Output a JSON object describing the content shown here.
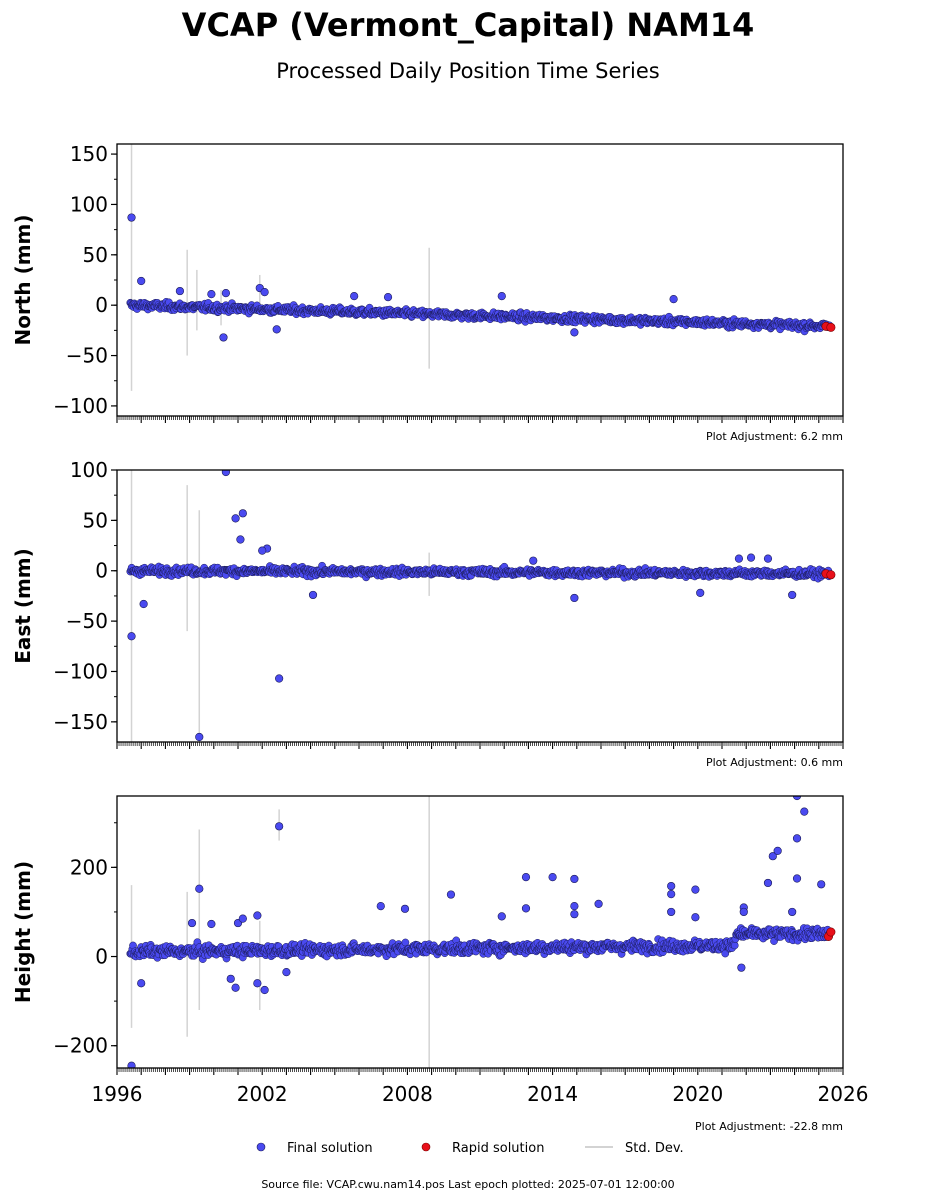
{
  "title": "VCAP (Vermont_Capital) NAM14",
  "subtitle": "Processed Daily Position Time Series",
  "footer": "Source file: VCAP.cwu.nam14.pos  Last epoch plotted: 2025-07-01 12:00:00",
  "legend": {
    "final": "Final solution",
    "rapid": "Rapid solution",
    "stddev": "Std. Dev."
  },
  "colors": {
    "final": "#4a4af0",
    "final_edge": "#1a1a55",
    "rapid": "#e8101a",
    "stddev": "#d3d3d3"
  },
  "chart_data": [
    {
      "type": "scatter",
      "ylabel": "North (mm)",
      "adjustment": "Plot Adjustment: 6.2 mm",
      "xlim": [
        1996,
        2026
      ],
      "ylim": [
        -110,
        160
      ],
      "yticks": [
        -100,
        -50,
        0,
        50,
        100,
        150
      ],
      "trend": [
        [
          1996.5,
          0
        ],
        [
          2025.5,
          -21
        ]
      ],
      "rapid": [
        [
          2025.3,
          -21
        ],
        [
          2025.5,
          -22
        ]
      ],
      "outliers": [
        [
          1996.6,
          87
        ],
        [
          1997.0,
          24
        ],
        [
          2000.4,
          -32
        ],
        [
          2001.9,
          17
        ],
        [
          2002.1,
          13
        ],
        [
          2002.6,
          -24
        ],
        [
          2007.2,
          8
        ],
        [
          2011.9,
          9
        ],
        [
          2019.0,
          6
        ],
        [
          2014.9,
          -27
        ],
        [
          1998.6,
          14
        ],
        [
          1999.9,
          11
        ],
        [
          2000.5,
          12
        ],
        [
          2005.8,
          9
        ]
      ],
      "errorbars": [
        [
          1996.6,
          -85,
          160
        ],
        [
          1998.9,
          -50,
          55
        ],
        [
          1999.3,
          -25,
          35
        ],
        [
          2000.3,
          -20,
          15
        ],
        [
          2001.9,
          -10,
          30
        ],
        [
          2008.9,
          -63,
          57
        ]
      ]
    },
    {
      "type": "scatter",
      "ylabel": "East (mm)",
      "adjustment": "Plot Adjustment: 0.6 mm",
      "xlim": [
        1996,
        2026
      ],
      "ylim": [
        -170,
        100
      ],
      "yticks": [
        -150,
        -100,
        -50,
        0,
        50,
        100
      ],
      "trend": [
        [
          1996.5,
          0
        ],
        [
          2025.5,
          -3
        ]
      ],
      "rapid": [
        [
          2025.3,
          -3
        ],
        [
          2025.5,
          -4
        ]
      ],
      "outliers": [
        [
          1996.6,
          -65
        ],
        [
          1997.1,
          -33
        ],
        [
          1999.4,
          -165
        ],
        [
          2000.5,
          98
        ],
        [
          2000.9,
          52
        ],
        [
          2001.1,
          31
        ],
        [
          2001.2,
          57
        ],
        [
          2002.2,
          22
        ],
        [
          2002.0,
          20
        ],
        [
          2002.7,
          -107
        ],
        [
          2004.1,
          -24
        ],
        [
          2013.2,
          10
        ],
        [
          2014.9,
          -27
        ],
        [
          2020.1,
          -22
        ],
        [
          2023.9,
          -24
        ],
        [
          2022.2,
          13
        ],
        [
          2022.9,
          12
        ],
        [
          2021.7,
          12
        ]
      ],
      "errorbars": [
        [
          1996.6,
          -170,
          100
        ],
        [
          1998.9,
          -60,
          85
        ],
        [
          1999.4,
          -170,
          60
        ],
        [
          2008.9,
          -25,
          18
        ]
      ]
    },
    {
      "type": "scatter",
      "ylabel": "Height (mm)",
      "adjustment": "Plot Adjustment: -22.8 mm",
      "xlim": [
        1996,
        2026
      ],
      "xticks": [
        1996,
        2002,
        2008,
        2014,
        2020,
        2026
      ],
      "ylim": [
        -250,
        360
      ],
      "yticks": [
        -200,
        0,
        200
      ],
      "trend": [
        [
          1996.5,
          10
        ],
        [
          2021.5,
          25
        ],
        [
          2021.6,
          50
        ],
        [
          2025.5,
          50
        ]
      ],
      "rapid": [
        [
          2025.4,
          45
        ],
        [
          2025.5,
          55
        ]
      ],
      "outliers": [
        [
          1996.6,
          -245
        ],
        [
          1997.0,
          -60
        ],
        [
          1999.4,
          152
        ],
        [
          1999.1,
          75
        ],
        [
          1999.9,
          73
        ],
        [
          2001.8,
          92
        ],
        [
          2002.1,
          -75
        ],
        [
          2002.7,
          292
        ],
        [
          2001.8,
          -60
        ],
        [
          2003.0,
          -35
        ],
        [
          2006.9,
          113
        ],
        [
          2007.9,
          107
        ],
        [
          2009.8,
          139
        ],
        [
          2011.9,
          90
        ],
        [
          2012.9,
          178
        ],
        [
          2012.9,
          108
        ],
        [
          2014.0,
          178
        ],
        [
          2014.9,
          174
        ],
        [
          2014.9,
          113
        ],
        [
          2014.9,
          95
        ],
        [
          2015.9,
          118
        ],
        [
          2018.9,
          158
        ],
        [
          2018.9,
          140
        ],
        [
          2018.9,
          100
        ],
        [
          2019.9,
          150
        ],
        [
          2019.9,
          88
        ],
        [
          2021.9,
          110
        ],
        [
          2021.9,
          100
        ],
        [
          2022.9,
          165
        ],
        [
          2023.1,
          225
        ],
        [
          2023.3,
          237
        ],
        [
          2024.1,
          360
        ],
        [
          2024.1,
          265
        ],
        [
          2024.1,
          175
        ],
        [
          2024.4,
          325
        ],
        [
          2025.1,
          162
        ],
        [
          2023.9,
          100
        ],
        [
          2021.8,
          -25
        ],
        [
          2000.9,
          -70
        ],
        [
          2000.7,
          -50
        ],
        [
          2001.0,
          75
        ],
        [
          2001.2,
          85
        ]
      ],
      "errorbars": [
        [
          1996.6,
          -160,
          160
        ],
        [
          1998.9,
          -180,
          145
        ],
        [
          1999.4,
          -120,
          285
        ],
        [
          2001.9,
          -120,
          80
        ],
        [
          2002.7,
          260,
          330
        ],
        [
          2008.9,
          -250,
          360
        ]
      ]
    }
  ]
}
